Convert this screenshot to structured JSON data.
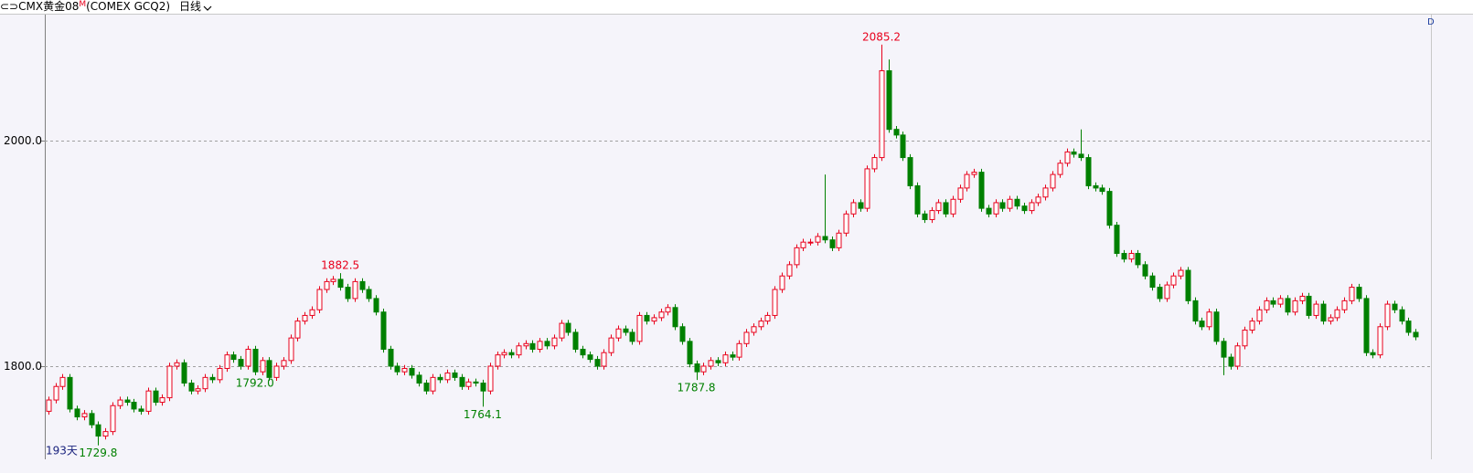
{
  "header": {
    "icon": "⊂⊃",
    "symbol": "CMX黄金08",
    "marker": "M",
    "code": "(COMEX GCQ2)",
    "period": "日线",
    "corner": "D"
  },
  "chart_data": {
    "type": "candlestick",
    "days_label": "193天",
    "up_color": "#e8001c",
    "down_color": "#008000",
    "grid": true,
    "ylim": [
      1717.4,
      2112.6
    ],
    "yticks": [
      {
        "value": 1800,
        "label": "1800.0"
      },
      {
        "value": 2000,
        "label": "2000.0"
      }
    ],
    "annotations": [
      {
        "value": 2085.2,
        "label": "2085.2"
      },
      {
        "value": 1882.5,
        "label": "1882.5"
      },
      {
        "value": 1764.1,
        "label": "1764.1"
      },
      {
        "value": 1787.8,
        "label": "1787.8"
      },
      {
        "value": 1792.0,
        "label": "1792.0"
      },
      {
        "value": 1729.8,
        "label": "1729.8"
      }
    ],
    "open": [
      1760,
      1770,
      1782,
      1790,
      1762,
      1755,
      1758,
      1748,
      1738,
      1742,
      1765,
      1770,
      1768,
      1762,
      1760,
      1778,
      1768,
      1772,
      1800,
      1803,
      1785,
      1778,
      1780,
      1790,
      1788,
      1798,
      1810,
      1806,
      1800,
      1815,
      1795,
      1805,
      1790,
      1800,
      1805,
      1825,
      1840,
      1845,
      1850,
      1868,
      1875,
      1877,
      1870,
      1860,
      1875,
      1868,
      1860,
      1848,
      1815,
      1800,
      1795,
      1798,
      1792,
      1785,
      1778,
      1790,
      1788,
      1794,
      1790,
      1782,
      1786,
      1785,
      1778,
      1800,
      1810,
      1812,
      1810,
      1818,
      1820,
      1815,
      1822,
      1818,
      1825,
      1838,
      1830,
      1815,
      1810,
      1806,
      1800,
      1812,
      1825,
      1833,
      1830,
      1822,
      1845,
      1840,
      1843,
      1848,
      1852,
      1835,
      1822,
      1802,
      1795,
      1800,
      1805,
      1803,
      1810,
      1808,
      1820,
      1830,
      1835,
      1840,
      1845,
      1868,
      1880,
      1890,
      1905,
      1910,
      1910,
      1915,
      1912,
      1905,
      1918,
      1935,
      1945,
      1940,
      1975,
      1985,
      2062,
      2010,
      2005,
      1985,
      1960,
      1935,
      1930,
      1938,
      1945,
      1935,
      1948,
      1958,
      1970,
      1972,
      1940,
      1935,
      1945,
      1940,
      1948,
      1942,
      1938,
      1945,
      1950,
      1958,
      1970,
      1980,
      1990,
      1988,
      1985,
      1960,
      1958,
      1955,
      1925,
      1900,
      1895,
      1900,
      1890,
      1880,
      1870,
      1860,
      1872,
      1880,
      1885,
      1858,
      1840,
      1835,
      1848,
      1822,
      1808,
      1800,
      1818,
      1832,
      1840,
      1850,
      1858,
      1855,
      1860,
      1848,
      1858,
      1862,
      1845,
      1855,
      1840,
      1843,
      1850,
      1858,
      1870,
      1860,
      1812,
      1810,
      1835,
      1855,
      1850,
      1840,
      1830
    ],
    "high": [
      1773,
      1785,
      1793,
      1793,
      1765,
      1761,
      1761,
      1751,
      1745,
      1768,
      1773,
      1773,
      1771,
      1765,
      1781,
      1781,
      1775,
      1803,
      1806,
      1806,
      1788,
      1783,
      1793,
      1793,
      1801,
      1813,
      1813,
      1809,
      1818,
      1818,
      1808,
      1808,
      1803,
      1808,
      1828,
      1843,
      1848,
      1853,
      1871,
      1878,
      1880,
      1882.5,
      1873,
      1878,
      1878,
      1871,
      1863,
      1851,
      1818,
      1803,
      1801,
      1801,
      1795,
      1788,
      1793,
      1793,
      1797,
      1797,
      1793,
      1789,
      1789,
      1788,
      1803,
      1813,
      1815,
      1815,
      1821,
      1823,
      1823,
      1825,
      1825,
      1828,
      1841,
      1841,
      1833,
      1818,
      1813,
      1809,
      1815,
      1828,
      1836,
      1836,
      1833,
      1848,
      1848,
      1846,
      1851,
      1855,
      1855,
      1838,
      1825,
      1805,
      1803,
      1808,
      1808,
      1813,
      1813,
      1823,
      1833,
      1838,
      1843,
      1848,
      1871,
      1883,
      1893,
      1908,
      1913,
      1913,
      1918,
      1970,
      1915,
      1921,
      1938,
      1948,
      1948,
      1978,
      1988,
      2085.2,
      2072,
      2013,
      2008,
      1988,
      1963,
      1938,
      1941,
      1948,
      1948,
      1951,
      1961,
      1973,
      1975,
      1975,
      1943,
      1948,
      1948,
      1951,
      1951,
      1945,
      1948,
      1953,
      1961,
      1973,
      1983,
      1993,
      1993,
      2010,
      1988,
      1963,
      1961,
      1958,
      1928,
      1903,
      1903,
      1903,
      1893,
      1883,
      1873,
      1875,
      1883,
      1888,
      1888,
      1861,
      1843,
      1851,
      1851,
      1825,
      1811,
      1821,
      1835,
      1843,
      1853,
      1861,
      1861,
      1863,
      1863,
      1861,
      1865,
      1865,
      1858,
      1858,
      1846,
      1853,
      1861,
      1873,
      1873,
      1863,
      1815,
      1838,
      1858,
      1858,
      1853,
      1843,
      1833
    ],
    "low": [
      1757,
      1767,
      1779,
      1759,
      1752,
      1752,
      1745,
      1729.8,
      1735,
      1739,
      1762,
      1765,
      1759,
      1757,
      1757,
      1765,
      1765,
      1769,
      1797,
      1782,
      1775,
      1775,
      1777,
      1785,
      1785,
      1795,
      1803,
      1797,
      1797,
      1792,
      1792,
      1787,
      1787,
      1797,
      1802,
      1822,
      1837,
      1842,
      1847,
      1865,
      1872,
      1867,
      1857,
      1857,
      1865,
      1857,
      1845,
      1812,
      1797,
      1792,
      1792,
      1789,
      1782,
      1775,
      1775,
      1785,
      1785,
      1787,
      1779,
      1779,
      1782,
      1764.1,
      1775,
      1797,
      1807,
      1807,
      1807,
      1815,
      1812,
      1812,
      1815,
      1815,
      1822,
      1827,
      1812,
      1807,
      1803,
      1797,
      1797,
      1809,
      1822,
      1827,
      1819,
      1819,
      1837,
      1837,
      1840,
      1845,
      1832,
      1819,
      1799,
      1787.8,
      1792,
      1797,
      1800,
      1800,
      1805,
      1805,
      1817,
      1827,
      1832,
      1837,
      1842,
      1865,
      1877,
      1887,
      1902,
      1907,
      1907,
      1909,
      1902,
      1902,
      1915,
      1932,
      1937,
      1937,
      1972,
      1982,
      2007,
      2002,
      1982,
      1957,
      1932,
      1927,
      1927,
      1935,
      1932,
      1932,
      1945,
      1955,
      1967,
      1937,
      1932,
      1932,
      1937,
      1937,
      1939,
      1935,
      1935,
      1942,
      1947,
      1955,
      1967,
      1977,
      1985,
      1982,
      1957,
      1955,
      1952,
      1922,
      1897,
      1892,
      1892,
      1887,
      1877,
      1867,
      1857,
      1857,
      1869,
      1877,
      1855,
      1837,
      1832,
      1832,
      1819,
      1792.0,
      1797,
      1797,
      1815,
      1829,
      1837,
      1847,
      1852,
      1852,
      1845,
      1845,
      1855,
      1842,
      1842,
      1837,
      1837,
      1840,
      1847,
      1855,
      1857,
      1809,
      1807,
      1807,
      1832,
      1847,
      1837,
      1827,
      1823
    ],
    "close": [
      1770,
      1782,
      1790,
      1762,
      1755,
      1758,
      1748,
      1738,
      1742,
      1765,
      1770,
      1768,
      1762,
      1760,
      1778,
      1768,
      1772,
      1800,
      1803,
      1785,
      1778,
      1780,
      1790,
      1788,
      1798,
      1810,
      1806,
      1800,
      1815,
      1795,
      1805,
      1790,
      1800,
      1805,
      1825,
      1840,
      1845,
      1850,
      1868,
      1875,
      1877,
      1870,
      1860,
      1875,
      1868,
      1860,
      1848,
      1815,
      1800,
      1795,
      1798,
      1792,
      1785,
      1778,
      1790,
      1788,
      1794,
      1790,
      1782,
      1786,
      1785,
      1778,
      1800,
      1810,
      1812,
      1810,
      1818,
      1820,
      1815,
      1822,
      1818,
      1825,
      1838,
      1830,
      1815,
      1810,
      1806,
      1800,
      1812,
      1825,
      1833,
      1830,
      1822,
      1845,
      1840,
      1843,
      1848,
      1852,
      1835,
      1822,
      1802,
      1795,
      1800,
      1805,
      1803,
      1810,
      1808,
      1820,
      1830,
      1835,
      1840,
      1845,
      1868,
      1880,
      1890,
      1905,
      1910,
      1910,
      1915,
      1912,
      1905,
      1918,
      1935,
      1945,
      1940,
      1975,
      1985,
      2062,
      2010,
      2005,
      1985,
      1960,
      1935,
      1930,
      1938,
      1945,
      1935,
      1948,
      1958,
      1970,
      1972,
      1940,
      1935,
      1945,
      1940,
      1948,
      1942,
      1938,
      1945,
      1950,
      1958,
      1970,
      1980,
      1990,
      1988,
      1985,
      1960,
      1958,
      1955,
      1925,
      1900,
      1895,
      1900,
      1890,
      1880,
      1870,
      1860,
      1872,
      1880,
      1885,
      1858,
      1840,
      1835,
      1848,
      1822,
      1808,
      1800,
      1818,
      1832,
      1840,
      1850,
      1858,
      1855,
      1860,
      1848,
      1858,
      1862,
      1845,
      1855,
      1840,
      1843,
      1850,
      1858,
      1870,
      1860,
      1812,
      1810,
      1835,
      1855,
      1850,
      1840,
      1830,
      1826
    ]
  }
}
